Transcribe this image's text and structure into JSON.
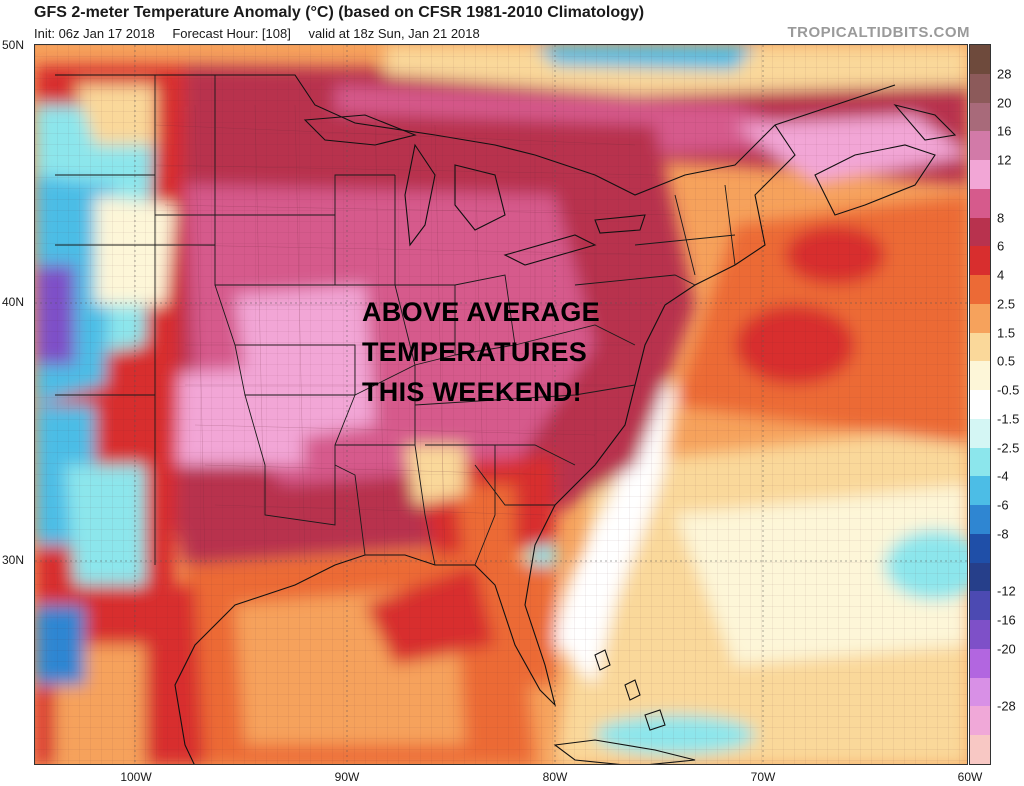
{
  "header": {
    "title": "GFS 2-meter Temperature Anomaly (°C) (based on CFSR 1981-2010 Climatology)",
    "init": "Init: 06z Jan 17 2018",
    "forecast_hour": "Forecast Hour: [108]",
    "valid": "valid at 18z Sun, Jan 21 2018",
    "brand": "TROPICALTIDBITS.COM"
  },
  "axes": {
    "lat_labels": [
      "50N",
      "40N",
      "30N"
    ],
    "lon_labels": [
      "100W",
      "90W",
      "80W",
      "70W",
      "60W"
    ]
  },
  "annotation": {
    "lines": [
      "ABOVE AVERAGE",
      "TEMPERATURES",
      "THIS WEEKEND!"
    ]
  },
  "legend": {
    "labels": [
      "28",
      "20",
      "16",
      "12",
      "8",
      "6",
      "4",
      "2.5",
      "1.5",
      "0.5",
      "-0.5",
      "-1.5",
      "-2.5",
      "-4",
      "-6",
      "-8",
      "-12",
      "-16",
      "-20",
      "-28"
    ],
    "colors": [
      "#6e4a3c",
      "#8c5a5a",
      "#a86a7a",
      "#d27aa8",
      "#f2a6d6",
      "#d65a8c",
      "#b8324e",
      "#d82e2e",
      "#ec6a36",
      "#f6a25c",
      "#fad89a",
      "#fdf6d8",
      "#ffffff",
      "#d4f6f4",
      "#8ce6ec",
      "#4cbde6",
      "#2f86d2",
      "#1f4fa8",
      "#263f8a",
      "#4c4ab2",
      "#7e50c8",
      "#b266e0",
      "#d890e6",
      "#f0a8d8",
      "#f8c8c4"
    ]
  }
}
